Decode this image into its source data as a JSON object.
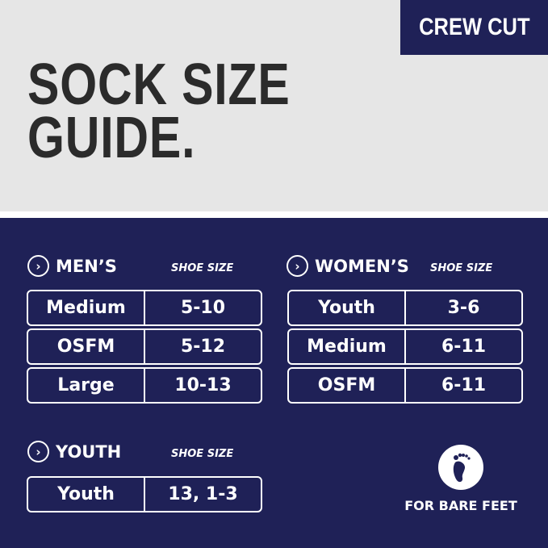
{
  "badge": "CREW CUT",
  "title": [
    "SOCK SIZE",
    "GUIDE."
  ],
  "sections": {
    "mens": {
      "label": "MEN’S",
      "sub": "SHOE SIZE",
      "rows": [
        [
          "Medium",
          "5-10"
        ],
        [
          "OSFM",
          "5-12"
        ],
        [
          "Large",
          "10-13"
        ]
      ]
    },
    "womens": {
      "label": "WOMEN’S",
      "sub": "SHOE SIZE",
      "rows": [
        [
          "Youth",
          "3-6"
        ],
        [
          "Medium",
          "6-11"
        ],
        [
          "OSFM",
          "6-11"
        ]
      ]
    },
    "youth": {
      "label": "YOUTH",
      "sub": "SHOE SIZE",
      "rows": [
        [
          "Youth",
          "13, 1-3"
        ]
      ]
    }
  },
  "bare_feet": "FOR BARE FEET",
  "icons": {
    "section": "chevron-right-circle-icon",
    "feature": "footprint-icon"
  },
  "colors": {
    "navy": "#1f2157",
    "gray": "#e6e6e6",
    "title": "#2b2b2b"
  }
}
